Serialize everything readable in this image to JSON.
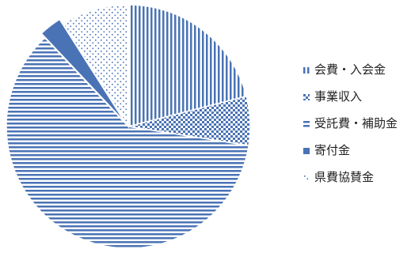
{
  "chart_data": {
    "type": "pie",
    "slices": [
      {
        "label": "会費・入会金",
        "value": 21.0,
        "pattern": "vertical"
      },
      {
        "label": "事業収入",
        "value": 6.5,
        "pattern": "checker"
      },
      {
        "label": "受託費・補助金",
        "value": 60.5,
        "pattern": "horizontal"
      },
      {
        "label": "寄付金",
        "value": 3.0,
        "pattern": "solid"
      },
      {
        "label": "県費協賛金",
        "value": 9.0,
        "pattern": "dots"
      }
    ],
    "legend_position": "right",
    "colors": {
      "fill": "#4a73b5",
      "background": "#ffffff"
    }
  }
}
